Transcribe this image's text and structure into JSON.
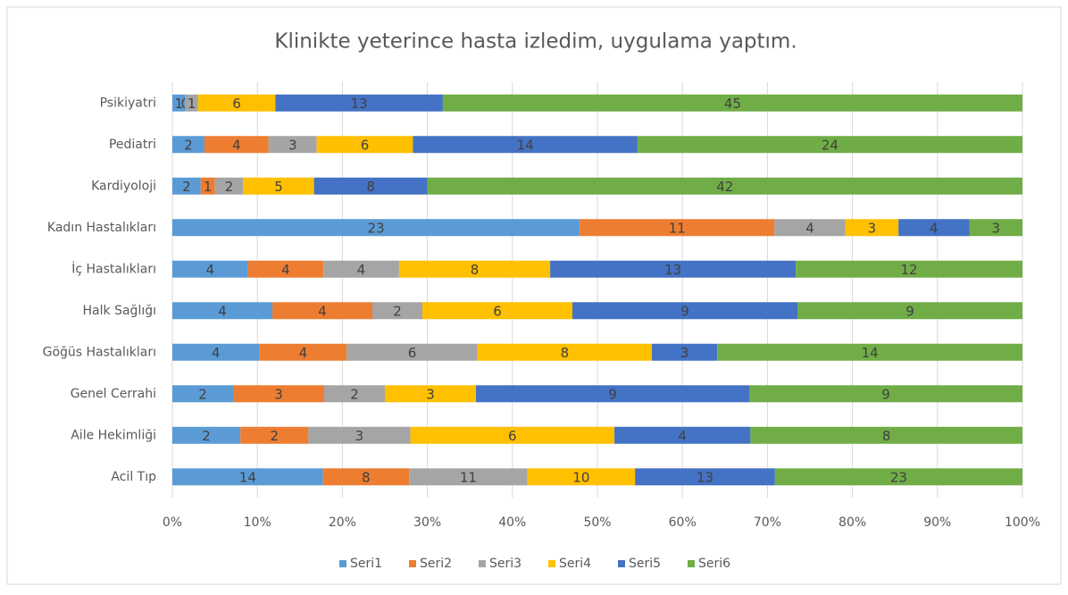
{
  "chart_data": {
    "type": "bar",
    "orientation": "horizontal",
    "stack": "percent",
    "title": "Klinikte yeterince hasta izledim, uygulama yaptım.",
    "categories": [
      "Acil Tıp",
      "Aile Hekimliği",
      "Genel Cerrahi",
      "Göğüs Hastalıkları",
      "Halk Sağlığı",
      "İç Hastalıkları",
      "Kadın Hastalıkları",
      "Kardiyoloji",
      "Pediatri",
      "Psikiyatri"
    ],
    "series": [
      {
        "name": "Seri1",
        "color": "#5b9bd5",
        "values": [
          14,
          2,
          2,
          4,
          4,
          4,
          23,
          2,
          2,
          1
        ]
      },
      {
        "name": "Seri2",
        "color": "#ed7d31",
        "values": [
          8,
          2,
          3,
          4,
          4,
          4,
          11,
          1,
          4,
          0
        ]
      },
      {
        "name": "Seri3",
        "color": "#a5a5a5",
        "values": [
          11,
          3,
          2,
          6,
          2,
          4,
          4,
          2,
          3,
          1
        ]
      },
      {
        "name": "Seri4",
        "color": "#ffc000",
        "values": [
          10,
          6,
          3,
          8,
          6,
          8,
          3,
          5,
          6,
          6
        ]
      },
      {
        "name": "Seri5",
        "color": "#4472c4",
        "values": [
          13,
          4,
          9,
          3,
          9,
          13,
          4,
          8,
          14,
          13
        ]
      },
      {
        "name": "Seri6",
        "color": "#70ad47",
        "values": [
          23,
          8,
          9,
          14,
          9,
          12,
          3,
          42,
          24,
          45
        ]
      }
    ],
    "xlim": [
      0,
      100
    ],
    "xticks": [
      {
        "value": 0,
        "label": "0%"
      },
      {
        "value": 10,
        "label": "10%"
      },
      {
        "value": 20,
        "label": "20%"
      },
      {
        "value": 30,
        "label": "30%"
      },
      {
        "value": 40,
        "label": "40%"
      },
      {
        "value": 50,
        "label": "50%"
      },
      {
        "value": 60,
        "label": "60%"
      },
      {
        "value": 70,
        "label": "70%"
      },
      {
        "value": 80,
        "label": "80%"
      },
      {
        "value": 90,
        "label": "90%"
      },
      {
        "value": 100,
        "label": "100%"
      }
    ],
    "legend": "bottom"
  }
}
